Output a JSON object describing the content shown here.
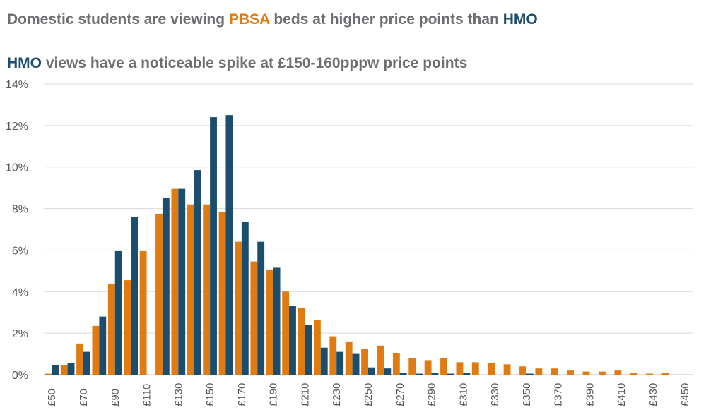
{
  "title": {
    "part1": "Domestic students are viewing ",
    "pbsa": "PBSA",
    "part2": " beds at higher price points than ",
    "hmo": "HMO"
  },
  "subtitle": {
    "hmo": "HMO",
    "rest": " views have a noticeable spike at £150-160pppw price points"
  },
  "colors": {
    "pbsa": "#e07b12",
    "hmo": "#1b4d6e",
    "title_text": "#6d6e71",
    "grid": "#d9d9d9"
  },
  "chart_data": {
    "type": "bar",
    "title": "Domestic students are viewing PBSA beds at higher price points than HMO",
    "subtitle": "HMO views have a noticeable spike at £150-160pppw price points",
    "xlabel": "",
    "ylabel": "",
    "ylim": [
      0,
      14
    ],
    "y_ticks": [
      "0%",
      "2%",
      "4%",
      "6%",
      "8%",
      "10%",
      "12%",
      "14%"
    ],
    "grid": true,
    "legend": "none",
    "categories": [
      "£50",
      "£60",
      "£70",
      "£80",
      "£90",
      "£100",
      "£110",
      "£120",
      "£130",
      "£140",
      "£150",
      "£160",
      "£170",
      "£180",
      "£190",
      "£200",
      "£210",
      "£220",
      "£230",
      "£240",
      "£250",
      "£260",
      "£270",
      "£280",
      "£290",
      "£300",
      "£310",
      "£320",
      "£330",
      "£340",
      "£350",
      "£360",
      "£370",
      "£380",
      "£390",
      "£400",
      "£410",
      "£420",
      "£430",
      "£440",
      "£450"
    ],
    "x_tick_labels": [
      "£50",
      "",
      "£70",
      "",
      "£90",
      "",
      "£110",
      "",
      "£130",
      "",
      "£150",
      "",
      "£170",
      "",
      "£190",
      "",
      "£210",
      "",
      "£230",
      "",
      "£250",
      "",
      "£270",
      "",
      "£290",
      "",
      "£310",
      "",
      "£330",
      "",
      "£350",
      "",
      "£370",
      "",
      "£390",
      "",
      "£410",
      "",
      "£430",
      "",
      "£450"
    ],
    "series": [
      {
        "name": "PBSA",
        "values": [
          0.05,
          0.45,
          1.5,
          2.35,
          4.35,
          4.55,
          5.95,
          7.75,
          8.95,
          8.2,
          8.2,
          7.85,
          6.4,
          5.45,
          5.05,
          4.0,
          3.2,
          2.65,
          1.85,
          1.6,
          1.25,
          1.4,
          1.05,
          0.8,
          0.7,
          0.8,
          0.6,
          0.6,
          0.55,
          0.5,
          0.4,
          0.3,
          0.3,
          0.2,
          0.15,
          0.15,
          0.2,
          0.1,
          0.05,
          0.1,
          0.0
        ]
      },
      {
        "name": "HMO",
        "values": [
          0.45,
          0.55,
          1.1,
          2.8,
          5.95,
          7.6,
          0.0,
          8.5,
          8.95,
          9.85,
          12.4,
          12.5,
          7.35,
          6.4,
          5.15,
          3.3,
          2.4,
          1.3,
          1.1,
          1.0,
          0.35,
          0.3,
          0.1,
          0.05,
          0.1,
          0.05,
          0.1,
          0.0,
          0.0,
          0.0,
          0.05,
          0.0,
          0.0,
          0.0,
          0.0,
          0.0,
          0.0,
          0.0,
          0.0,
          0.0,
          0.0
        ]
      }
    ]
  }
}
